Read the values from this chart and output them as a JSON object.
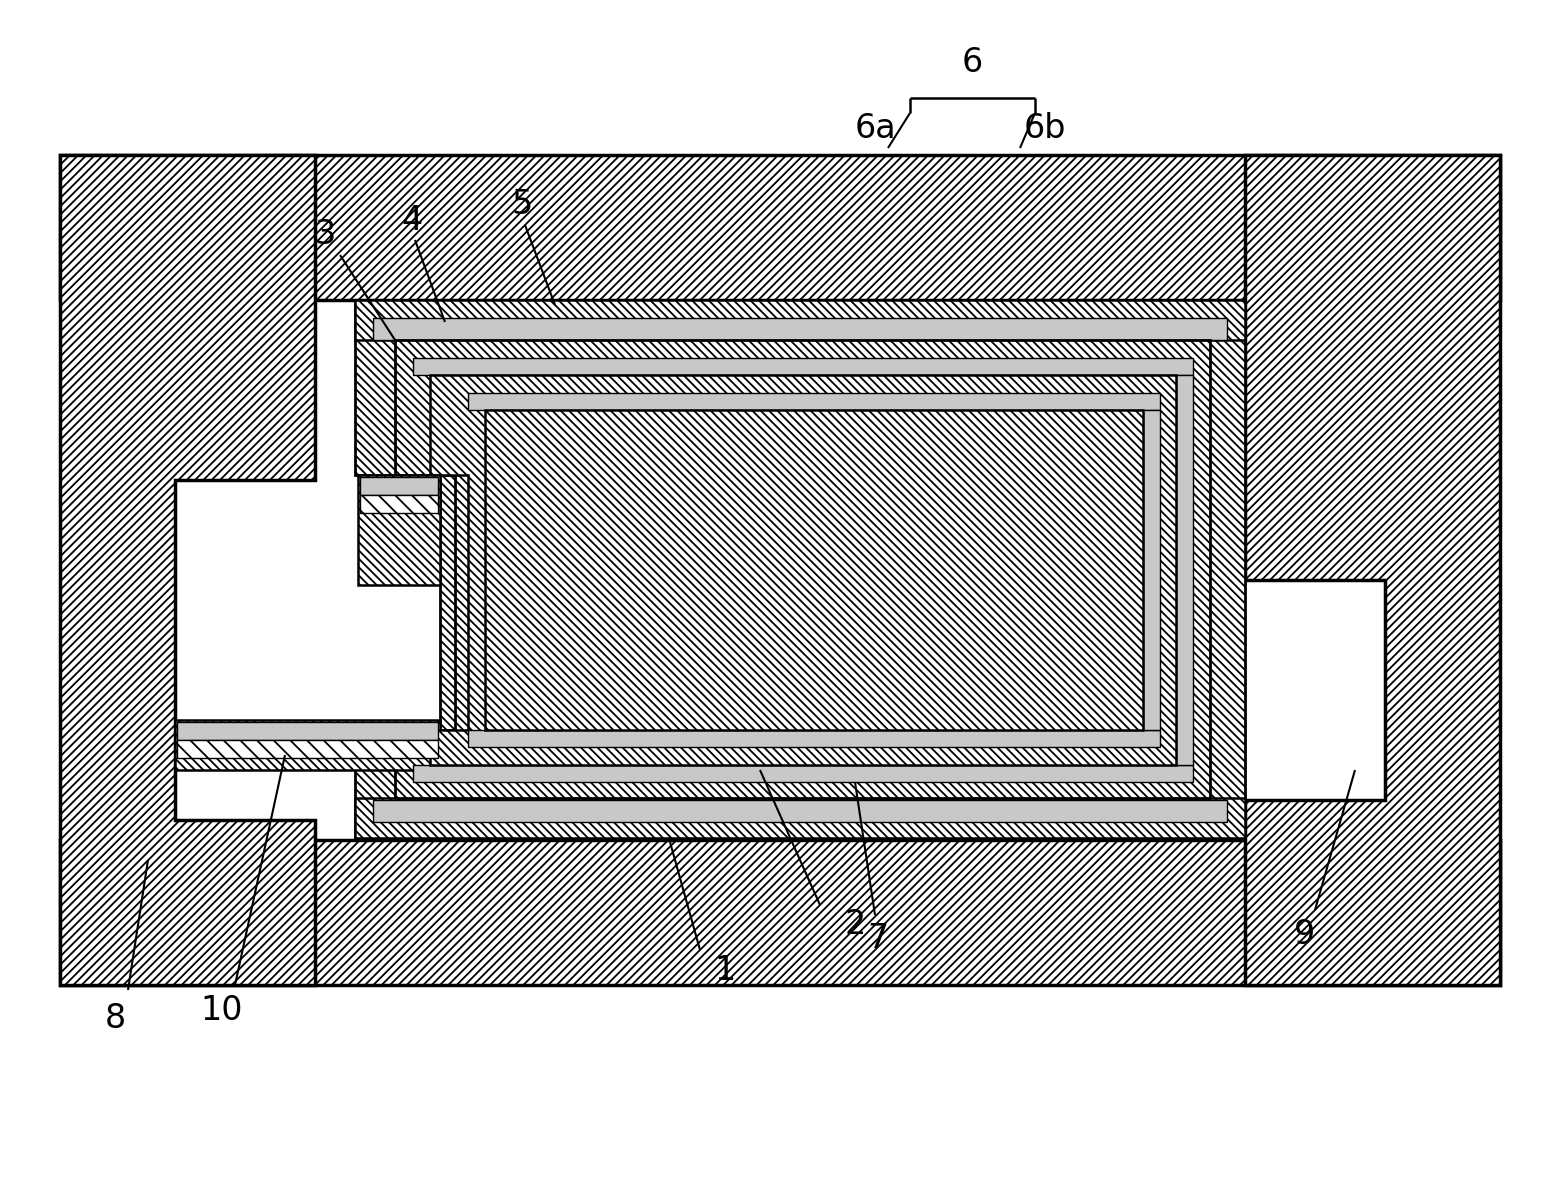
{
  "bg_color": "#ffffff",
  "line_color": "#000000",
  "fig_width": 15.61,
  "fig_height": 12.02
}
